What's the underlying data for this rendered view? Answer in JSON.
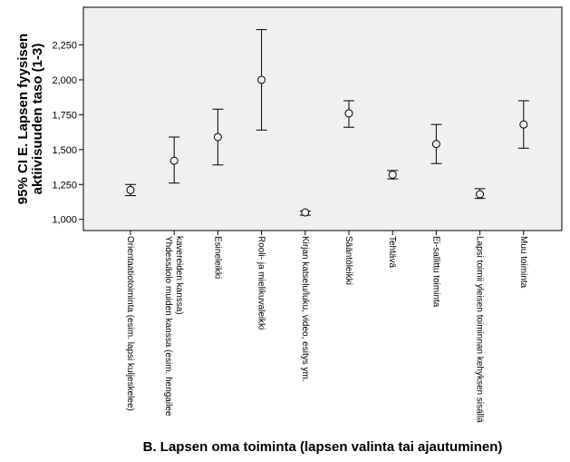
{
  "chart_data": {
    "type": "errorbar",
    "xlabel": "B. Lapsen oma toiminta (lapsen valinta tai ajautuminen)",
    "ylabel_lines": [
      "95% CI E. Lapsen fyysisen",
      "aktiivisuuden taso (1-3)"
    ],
    "ylim": [
      0.92,
      2.52
    ],
    "yticks": [
      "1,000",
      "1,250",
      "1,500",
      "1,750",
      "2,000",
      "2,250"
    ],
    "ytick_values": [
      1.0,
      1.25,
      1.5,
      1.75,
      2.0,
      2.25
    ],
    "grid": false,
    "background": "#f0f0f0",
    "categories": [
      [
        "Orientaatiotoiminta (esim. lapsi kuljeskelee)"
      ],
      [
        "Yhdessäolo muiden kanssa (esim. hengailee",
        "kavereiden kanssa)"
      ],
      [
        "Esineleikki"
      ],
      [
        "Rooli- ja mielikuvaleikki"
      ],
      [
        "Kirjan katselu/luku, video, esitys ym."
      ],
      [
        "Sääntöleikki"
      ],
      [
        "Tehtävä"
      ],
      [
        "Ei-sallittu toiminta"
      ],
      [
        "Lapsi toimii yleisen toiminnan kehyksen sisällä"
      ],
      [
        "Muu toiminta"
      ]
    ],
    "means": [
      1.21,
      1.42,
      1.59,
      2.0,
      1.05,
      1.76,
      1.32,
      1.54,
      1.18,
      1.68
    ],
    "ci_lower": [
      1.17,
      1.26,
      1.39,
      1.64,
      1.03,
      1.66,
      1.29,
      1.4,
      1.15,
      1.51
    ],
    "ci_upper": [
      1.25,
      1.59,
      1.79,
      2.36,
      1.06,
      1.85,
      1.35,
      1.68,
      1.22,
      1.85
    ]
  }
}
